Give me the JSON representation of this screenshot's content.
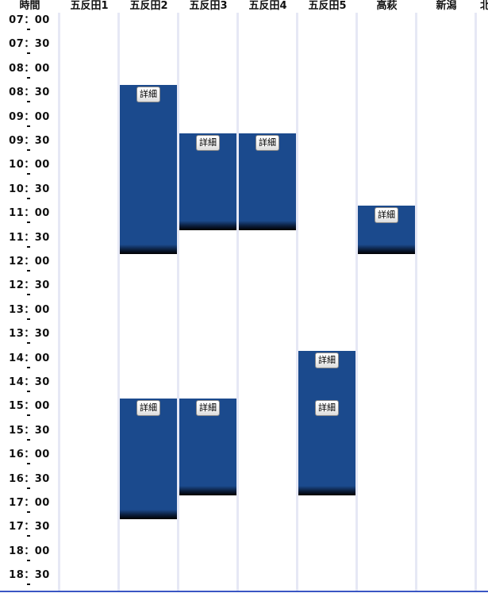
{
  "header": {
    "time_label": "時間",
    "rooms": [
      "五反田1",
      "五反田2",
      "五反田3",
      "五反田4",
      "五反田5",
      "高萩",
      "新潟",
      "北"
    ]
  },
  "time_slots": [
    "07：00",
    "07：30",
    "08：00",
    "08：30",
    "09：00",
    "09：30",
    "10：00",
    "10：30",
    "11：00",
    "11：30",
    "12：00",
    "12：30",
    "13：00",
    "13：30",
    "14：00",
    "14：30",
    "15：00",
    "15：30",
    "16：00",
    "16：30",
    "17：00",
    "17：30",
    "18：00",
    "18：30"
  ],
  "bookings": [
    {
      "room": "五反田2",
      "start": "08：30",
      "end": "12：00",
      "button_label": "詳細"
    },
    {
      "room": "五反田3",
      "start": "09：30",
      "end": "11：30",
      "button_label": "詳細"
    },
    {
      "room": "五反田4",
      "start": "09：30",
      "end": "11：30",
      "button_label": "詳細"
    },
    {
      "room": "高萩",
      "start": "11：00",
      "end": "12：00",
      "button_label": "詳細"
    },
    {
      "room": "五反田5",
      "start": "14：00",
      "end": "15：30",
      "button_label": "詳細"
    },
    {
      "room": "五反田5",
      "start": "15：00",
      "end": "17：00",
      "button_label": "詳細"
    },
    {
      "room": "五反田2",
      "start": "15：00",
      "end": "17：30",
      "button_label": "詳細"
    },
    {
      "room": "五反田3",
      "start": "15：00",
      "end": "17：00",
      "button_label": "詳細"
    }
  ],
  "colors": {
    "booking_fill": "#1b4a8d",
    "column_divider": "#e6e8f5",
    "bottom_rule": "#3a56c4"
  }
}
